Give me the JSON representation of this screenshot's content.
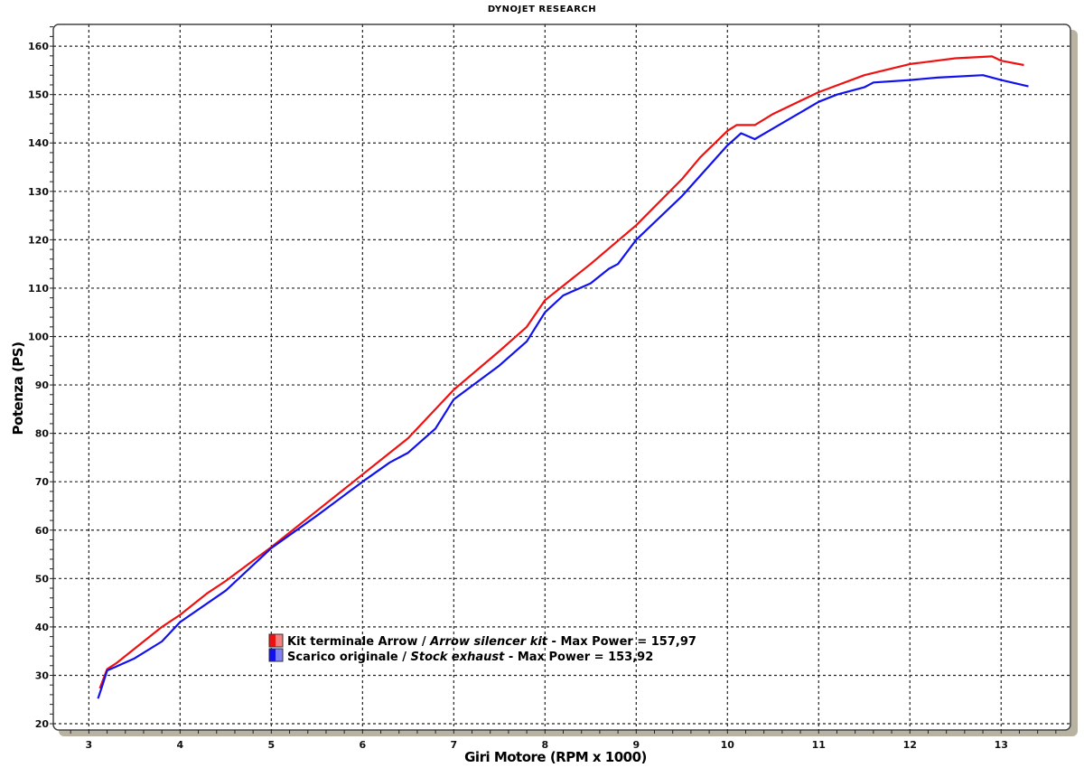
{
  "chart_data": {
    "type": "line",
    "title": "DYNOJET RESEARCH",
    "xlabel": "Giri Motore (RPM x 1000)",
    "ylabel": "Potenza (PS)",
    "xlim": [
      2.61,
      13.76
    ],
    "ylim": [
      18.7,
      164.5
    ],
    "xticks": [
      3,
      4,
      5,
      6,
      7,
      8,
      9,
      10,
      11,
      12,
      13
    ],
    "yticks": [
      20,
      30,
      40,
      50,
      60,
      70,
      80,
      90,
      100,
      110,
      120,
      130,
      140,
      150,
      160
    ],
    "grid": true,
    "legend_position": "bottom-center",
    "series": [
      {
        "legend": {
          "name": "Kit terminale Arrow / ",
          "name_italic": "Arrow silencer kit",
          "suffix": " - Max Power = 157,97"
        },
        "color": "#ee1111",
        "x": [
          3.12,
          3.2,
          3.3,
          3.5,
          3.8,
          4.0,
          4.3,
          4.5,
          5.0,
          5.5,
          6.0,
          6.5,
          6.6,
          7.0,
          7.5,
          7.8,
          8.0,
          8.5,
          9.0,
          9.5,
          9.7,
          10.0,
          10.1,
          10.3,
          10.5,
          11.0,
          11.5,
          12.0,
          12.5,
          12.9,
          13.0,
          13.25
        ],
        "y": [
          27.3,
          31.3,
          32.5,
          35.5,
          40,
          42.5,
          47,
          49.5,
          56.5,
          64,
          71.5,
          79,
          81,
          89,
          97,
          102,
          107.5,
          115,
          123,
          132.5,
          137,
          142.5,
          143.7,
          143.7,
          146,
          150.5,
          154,
          156.3,
          157.5,
          157.9,
          157,
          156.1
        ]
      },
      {
        "legend": {
          "name": "Scarico originale / ",
          "name_italic": "Stock exhaust",
          "suffix": " - Max Power = 153,92"
        },
        "color": "#1111ee",
        "x": [
          3.1,
          3.15,
          3.2,
          3.3,
          3.5,
          3.8,
          4.0,
          4.5,
          5.0,
          5.5,
          6.0,
          6.3,
          6.5,
          6.8,
          7.0,
          7.5,
          7.8,
          8.0,
          8.2,
          8.5,
          8.7,
          8.8,
          9.0,
          9.5,
          10.0,
          10.15,
          10.3,
          10.5,
          11.0,
          11.2,
          11.5,
          11.6,
          12.0,
          12.3,
          12.8,
          13.0,
          13.3
        ],
        "y": [
          25.2,
          28,
          31,
          31.8,
          33.5,
          37,
          41,
          47.5,
          56.3,
          63,
          70,
          74,
          76,
          81,
          87,
          94,
          99,
          105,
          108.5,
          111,
          114,
          115,
          120,
          129,
          139.5,
          142,
          140.8,
          143,
          148.5,
          150,
          151.5,
          152.5,
          153,
          153.5,
          154,
          153,
          151.7
        ]
      }
    ]
  }
}
